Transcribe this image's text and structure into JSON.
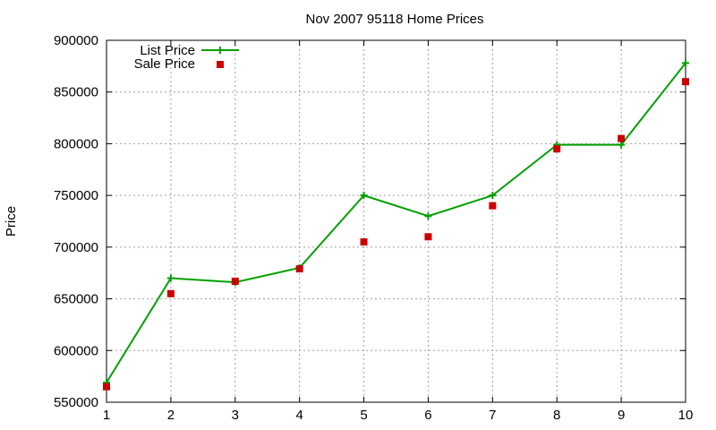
{
  "chart_data": {
    "type": "line",
    "title": "Nov 2007 95118 Home Prices",
    "xlabel": "",
    "ylabel": "Price",
    "x": [
      1,
      2,
      3,
      4,
      5,
      6,
      7,
      8,
      9,
      10
    ],
    "xlim": [
      1,
      10
    ],
    "ylim": [
      550000,
      900000
    ],
    "x_ticks": [
      "1",
      "2",
      "3",
      "4",
      "5",
      "6",
      "7",
      "8",
      "9",
      "10"
    ],
    "y_ticks": [
      "550000",
      "600000",
      "650000",
      "700000",
      "750000",
      "800000",
      "850000",
      "900000"
    ],
    "grid": true,
    "legend_position": "top-left",
    "series": [
      {
        "name": "List Price",
        "style": "line-with-plus-markers",
        "color": "#00a000",
        "values": [
          569000,
          670000,
          666000,
          680000,
          750000,
          730000,
          750000,
          799000,
          799000,
          878000
        ]
      },
      {
        "name": "Sale Price",
        "style": "square-markers",
        "color": "#cc0000",
        "values": [
          565000,
          655000,
          667000,
          679000,
          705000,
          710000,
          740000,
          795000,
          805000,
          860000
        ]
      }
    ]
  }
}
